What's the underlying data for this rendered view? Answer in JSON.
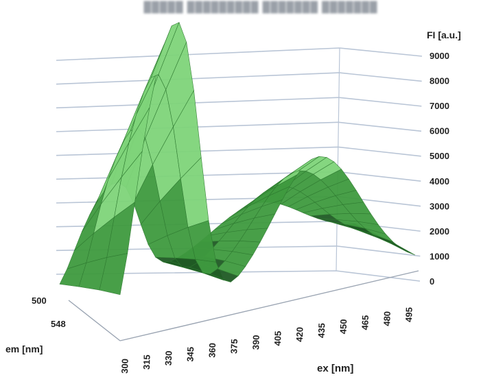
{
  "chart_data": {
    "type": "surface3d",
    "title": "",
    "z_axis": {
      "label": "FI [a.u.]",
      "ticks": [
        "0",
        "1000",
        "2000",
        "3000",
        "4000",
        "5000",
        "6000",
        "7000",
        "8000",
        "9000"
      ],
      "range": [
        0,
        9000
      ]
    },
    "x_axis": {
      "label": "ex [nm]",
      "ticks": [
        "300",
        "315",
        "330",
        "345",
        "360",
        "375",
        "390",
        "405",
        "420",
        "435",
        "450",
        "465",
        "480",
        "495"
      ]
    },
    "y_axis": {
      "label": "em [nm]",
      "ticks": [
        "500",
        "548"
      ]
    },
    "grid": true,
    "colors": {
      "surface_dark": "#1f5a24",
      "surface_mid": "#3f9a3f",
      "surface_light": "#7fd47a",
      "grid": "#b9c5d6"
    },
    "peaks": [
      {
        "ex": 345,
        "fi": 8700
      },
      {
        "ex": 330,
        "fi": 7500
      },
      {
        "ex": 315,
        "fi": 5200
      },
      {
        "ex": 435,
        "fi": 3500
      }
    ]
  }
}
